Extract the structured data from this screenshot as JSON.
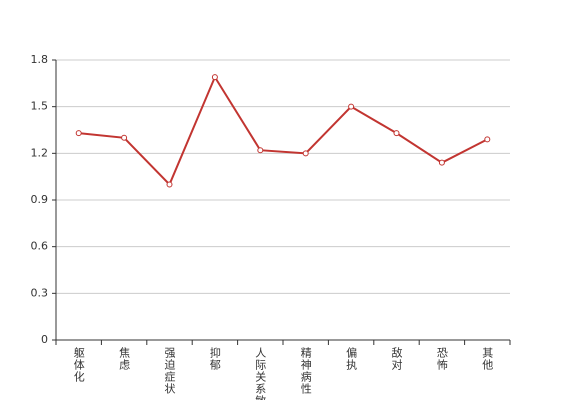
{
  "chart_data": {
    "type": "line",
    "categories": [
      "躯体化",
      "焦虑",
      "强迫症状",
      "抑郁",
      "人际关系敏感",
      "精神病性",
      "偏执",
      "敌对",
      "恐怖",
      "其他"
    ],
    "series": [
      {
        "color": "#c23531",
        "values": [
          1.33,
          1.3,
          1.0,
          1.69,
          1.22,
          1.2,
          1.5,
          1.33,
          1.14,
          1.29
        ]
      }
    ],
    "ylim": [
      0,
      1.8
    ],
    "yticks": [
      0,
      0.3,
      0.6,
      0.9,
      1.2,
      1.5,
      1.8
    ],
    "grid": true
  }
}
